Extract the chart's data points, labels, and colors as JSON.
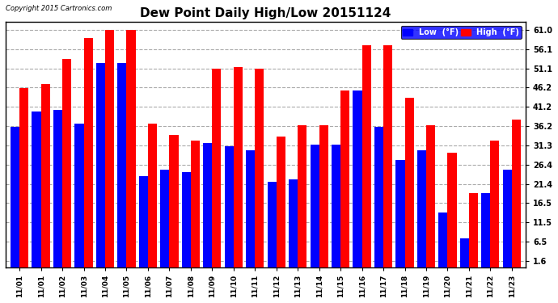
{
  "title": "Dew Point Daily High/Low 20151124",
  "copyright": "Copyright 2015 Cartronics.com",
  "background_color": "#ffffff",
  "plot_bg_color": "#ffffff",
  "grid_color": "#aaaaaa",
  "dates": [
    "11/01",
    "11/01",
    "11/02",
    "11/03",
    "11/04",
    "11/05",
    "11/06",
    "11/07",
    "11/08",
    "11/09",
    "11/10",
    "11/11",
    "11/12",
    "11/13",
    "11/14",
    "11/15",
    "11/16",
    "11/17",
    "11/18",
    "11/19",
    "11/20",
    "11/21",
    "11/22",
    "11/23"
  ],
  "low_values": [
    36.0,
    40.0,
    40.5,
    37.0,
    52.5,
    52.5,
    23.5,
    25.0,
    24.5,
    32.0,
    31.0,
    30.0,
    22.0,
    22.5,
    31.5,
    31.5,
    45.5,
    36.0,
    27.5,
    30.0,
    14.0,
    7.5,
    19.0,
    25.0
  ],
  "high_values": [
    46.0,
    47.0,
    53.5,
    59.0,
    61.0,
    61.0,
    37.0,
    34.0,
    32.5,
    51.0,
    51.5,
    51.0,
    33.5,
    36.5,
    36.5,
    45.5,
    57.0,
    57.0,
    43.5,
    36.5,
    29.5,
    19.0,
    32.5,
    38.0
  ],
  "low_color": "#0000ff",
  "high_color": "#ff0000",
  "yticks": [
    1.6,
    6.5,
    11.5,
    16.5,
    21.4,
    26.4,
    31.3,
    36.2,
    41.2,
    46.2,
    51.1,
    56.1,
    61.0
  ],
  "ylim": [
    0,
    63
  ],
  "bar_width": 0.42,
  "legend_low_label": "Low  (°F)",
  "legend_high_label": "High  (°F)"
}
